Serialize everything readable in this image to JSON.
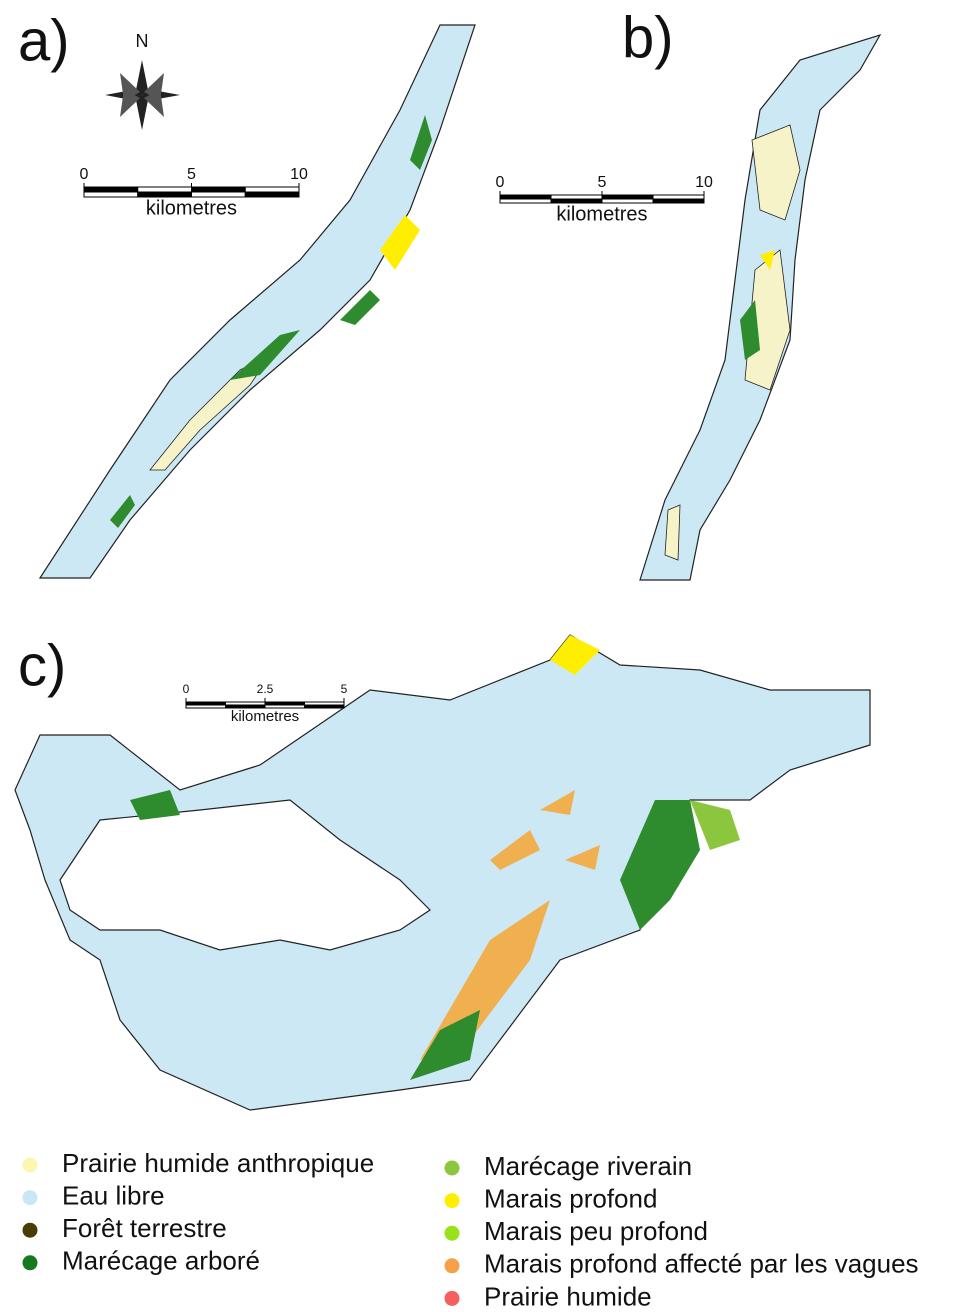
{
  "compass": "N",
  "panels": [
    {
      "label": "a)",
      "scale": {
        "ticks": [
          0,
          5,
          10
        ],
        "unit": "kilometres"
      }
    },
    {
      "label": "b)",
      "scale": {
        "ticks": [
          0,
          5,
          10
        ],
        "unit": "kilometres"
      }
    },
    {
      "label": "c)",
      "scale": {
        "ticks": [
          0,
          2.5,
          5
        ],
        "unit": "kilometres"
      }
    }
  ],
  "legend": [
    {
      "label": "Prairie humide anthropique",
      "color": "#fbf6b0"
    },
    {
      "label": "Eau libre",
      "color": "#c9e7f5"
    },
    {
      "label": "Forêt terrestre",
      "color": "#4a3c05"
    },
    {
      "label": "Marécage arboré",
      "color": "#137a1d"
    },
    {
      "label": "Marécage riverain",
      "color": "#8cc63f"
    },
    {
      "label": "Marais profond",
      "color": "#ffee00"
    },
    {
      "label": "Marais peu profond",
      "color": "#99e21a"
    },
    {
      "label": "Marais profond affecté par les vagues",
      "color": "#f4a14a"
    },
    {
      "label": "Prairie humide",
      "color": "#f46060"
    }
  ]
}
